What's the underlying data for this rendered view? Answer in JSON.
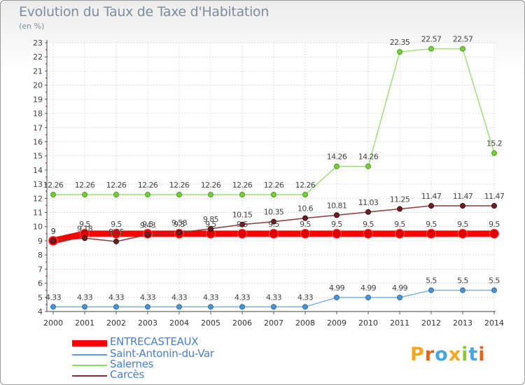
{
  "chart_data": {
    "type": "line",
    "title": "Evolution du Taux de Taxe d'Habitation",
    "unit_label": "(en %)",
    "x": [
      "2000",
      "2001",
      "2002",
      "2003",
      "2004",
      "2005",
      "2006",
      "2007",
      "2008",
      "2009",
      "2010",
      "2011",
      "2012",
      "2013",
      "2014"
    ],
    "yticks": [
      "4",
      "5",
      "6",
      "7",
      "8",
      "9",
      "10",
      "11",
      "12",
      "13",
      "14",
      "15",
      "16",
      "17",
      "18",
      "19",
      "20",
      "21",
      "22",
      "23"
    ],
    "ylim": [
      4,
      23
    ],
    "grid": true,
    "legend_position": "bottom-left",
    "series": [
      {
        "name": "ENTRECASTEAUX",
        "color": "#ff0000",
        "values": [
          9,
          9.5,
          9.5,
          9.5,
          9.5,
          9.5,
          9.5,
          9.5,
          9.5,
          9.5,
          9.5,
          9.5,
          9.5,
          9.5,
          9.5
        ],
        "labels": [
          "9",
          "9.5",
          "9.5",
          "9.5",
          "9.5",
          "9.5",
          "9.5",
          "9.5",
          "9.5",
          "9.5",
          "9.5",
          "9.5",
          "9.5",
          "9.5",
          "9.5"
        ]
      },
      {
        "name": "Saint-Antonin-du-Var",
        "color": "#5e9cd3",
        "values": [
          4.33,
          4.33,
          4.33,
          4.33,
          4.33,
          4.33,
          4.33,
          4.33,
          4.33,
          4.99,
          4.99,
          4.99,
          5.5,
          5.5,
          5.5
        ],
        "labels": [
          "4.33",
          "4.33",
          "4.33",
          "4.33",
          "4.33",
          "4.33",
          "4.33",
          "4.33",
          "4.33",
          "4.99",
          "4.99",
          "4.99",
          "5.5",
          "5.5",
          "5.5"
        ]
      },
      {
        "name": "Salernes",
        "color": "#8fdb5a",
        "values": [
          12.26,
          12.26,
          12.26,
          12.26,
          12.26,
          12.26,
          12.26,
          12.26,
          12.26,
          14.26,
          14.26,
          22.35,
          22.57,
          22.57,
          15.2
        ],
        "labels": [
          "12.26",
          "12.26",
          "12.26",
          "12.26",
          "12.26",
          "12.26",
          "12.26",
          "12.26",
          "12.26",
          "14.26",
          "14.26",
          "22.35",
          "22.57",
          "22.57",
          "15.2"
        ]
      },
      {
        "name": "Carcès",
        "color": "#7c2f32",
        "values": [
          9,
          9.18,
          8.95,
          9.43,
          9.58,
          9.85,
          10.15,
          10.35,
          10.6,
          10.81,
          11.03,
          11.25,
          11.47,
          11.47,
          11.47
        ],
        "labels": [
          "9",
          "9.18",
          "8.95",
          "9.43",
          "9.58",
          "9.85",
          "10.15",
          "10.35",
          "10.6",
          "10.81",
          "11.03",
          "11.25",
          "11.47",
          "11.47",
          "11.47"
        ]
      }
    ]
  },
  "logo": {
    "text": "Proxiti",
    "letters": [
      "P",
      "r",
      "o",
      "x",
      "i",
      "t",
      "i"
    ],
    "colors": [
      "#f5a623",
      "#e8641b",
      "#4aa3df",
      "#f5a623",
      "#8cc63f",
      "#4aa3df",
      "#e8641b"
    ]
  }
}
